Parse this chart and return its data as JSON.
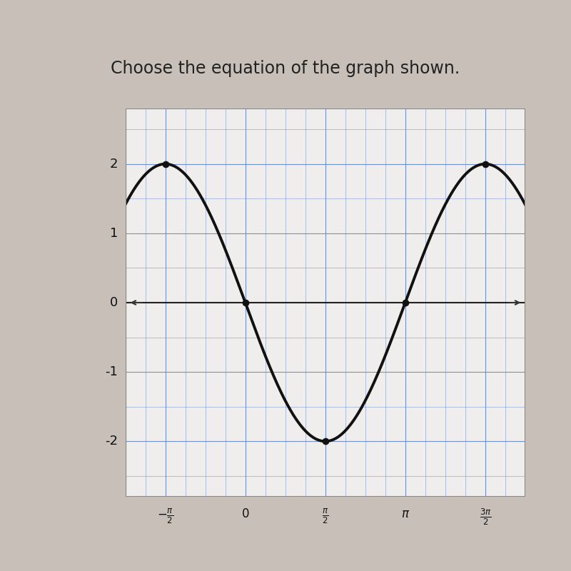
{
  "title": "Choose the equation of the graph shown.",
  "title_fontsize": 17,
  "title_color": "#222222",
  "background_color": "#c8c0b8",
  "plot_bg_color": "#f0eeec",
  "grid_color": "#6688cc",
  "grid_linewidth": 0.8,
  "curve_color": "#111111",
  "curve_linewidth": 2.8,
  "dot_color": "#111111",
  "dot_size": 7,
  "xlim": [
    -2.35,
    5.5
  ],
  "ylim": [
    -2.8,
    2.8
  ],
  "xtick_positions": [
    -1.5707963,
    0,
    1.5707963,
    3.14159265,
    4.71238898
  ],
  "ytick_positions": [
    -2,
    -1,
    0,
    1,
    2
  ],
  "ytick_labels": [
    "-2",
    "-1",
    "0",
    "1",
    "2"
  ],
  "dot_x": [
    -1.5707963,
    0.0,
    1.5707963,
    3.14159265,
    4.71238898
  ],
  "dot_y": [
    2.0,
    0.0,
    -2.0,
    0.0,
    2.0
  ],
  "amplitude": -2,
  "phase": 0,
  "arrow_color": "#333333"
}
